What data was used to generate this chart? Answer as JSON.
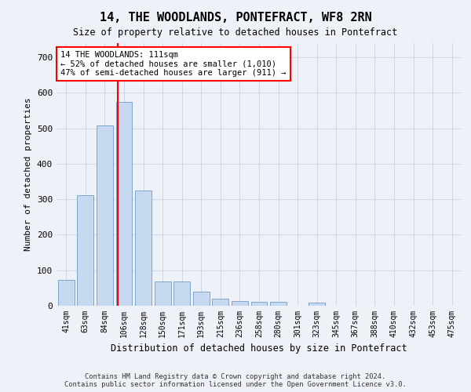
{
  "title": "14, THE WOODLANDS, PONTEFRACT, WF8 2RN",
  "subtitle": "Size of property relative to detached houses in Pontefract",
  "xlabel": "Distribution of detached houses by size in Pontefract",
  "ylabel": "Number of detached properties",
  "categories": [
    "41sqm",
    "63sqm",
    "84sqm",
    "106sqm",
    "128sqm",
    "150sqm",
    "171sqm",
    "193sqm",
    "215sqm",
    "236sqm",
    "258sqm",
    "280sqm",
    "301sqm",
    "323sqm",
    "345sqm",
    "367sqm",
    "388sqm",
    "410sqm",
    "432sqm",
    "453sqm",
    "475sqm"
  ],
  "bar_values": [
    72,
    312,
    507,
    575,
    325,
    68,
    68,
    40,
    20,
    14,
    11,
    11,
    0,
    8,
    0,
    0,
    0,
    0,
    0,
    0,
    0
  ],
  "bar_color": "#c6d9f0",
  "bar_edge_color": "#7da7c9",
  "vline_color": "red",
  "annotation_line1": "14 THE WOODLANDS: 111sqm",
  "annotation_line2": "← 52% of detached houses are smaller (1,010)",
  "annotation_line3": "47% of semi-detached houses are larger (911) →",
  "annotation_box_color": "white",
  "annotation_box_edge_color": "red",
  "footer_text": "Contains HM Land Registry data © Crown copyright and database right 2024.\nContains public sector information licensed under the Open Government Licence v3.0.",
  "ylim": [
    0,
    740
  ],
  "yticks": [
    0,
    100,
    200,
    300,
    400,
    500,
    600,
    700
  ],
  "grid_color": "#d0d8e8",
  "background_color": "#eef2f8",
  "plot_bg_color": "#eef2f8",
  "vline_x": 2.68
}
